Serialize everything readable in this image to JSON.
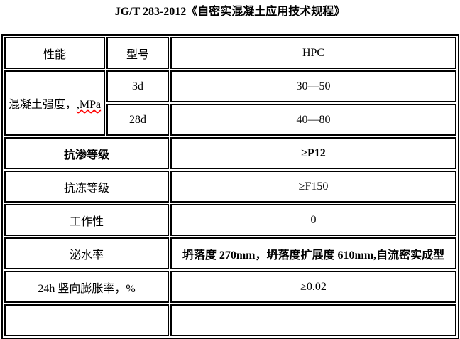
{
  "title": "JG/T 283-2012《自密实混凝土应用技术规程》",
  "table": {
    "headers": {
      "performance": "性能",
      "model": "型号",
      "product": "HPC"
    },
    "strength": {
      "label": "混凝土强度，",
      "unit": ",MPa",
      "rows": [
        {
          "age": "3d",
          "value": "30—50"
        },
        {
          "age": "28d",
          "value": "40—80"
        }
      ]
    },
    "properties": [
      {
        "label": "抗渗等级",
        "value": "≥P12"
      },
      {
        "label": "抗冻等级",
        "value": "≥F150"
      },
      {
        "label": "工作性",
        "value": "0"
      },
      {
        "label": "泌水率",
        "value": "坍落度 270mm，坍落度扩展度 610mm,自流密实成型"
      },
      {
        "label": "24h 竖向膨胀率，%",
        "value": "≥0.02"
      }
    ]
  }
}
